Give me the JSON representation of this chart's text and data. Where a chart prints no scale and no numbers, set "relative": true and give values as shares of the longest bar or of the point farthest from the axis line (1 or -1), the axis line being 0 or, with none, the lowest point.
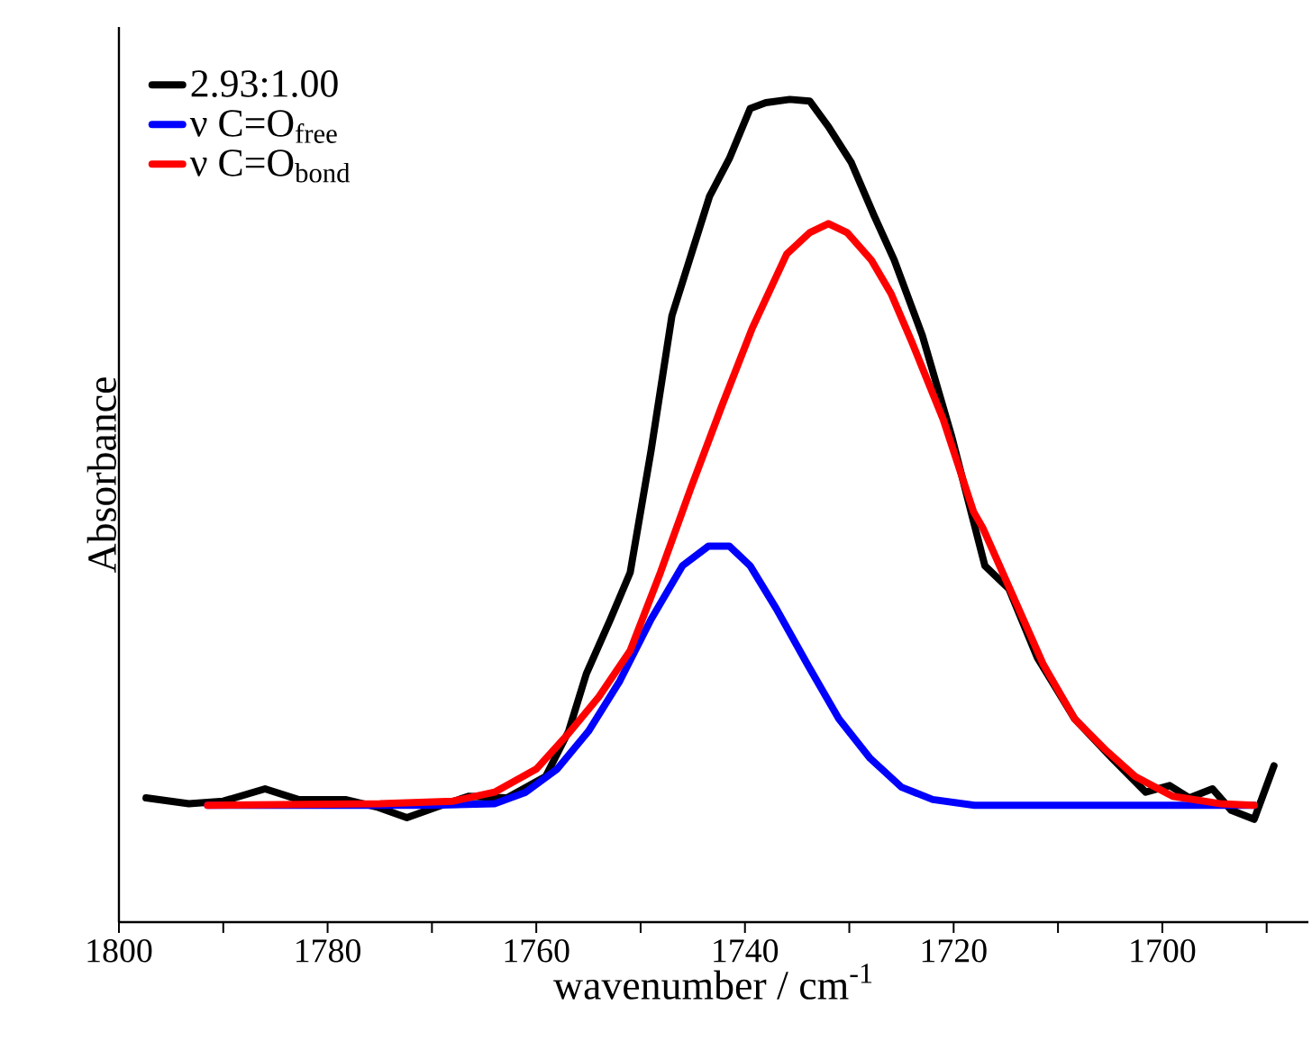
{
  "chart_data": {
    "type": "line",
    "relative": true,
    "xlabel": "wavenumber / cm$^{-1}$",
    "ylabel": "Absorbance",
    "xlim": [
      1800,
      1686
    ],
    "xticks": [
      1800,
      {
        "value": 1790,
        "label": null
      },
      1780,
      {
        "value": 1770,
        "label": null
      },
      1760,
      {
        "value": 1750,
        "label": null
      },
      1740,
      {
        "value": 1730,
        "label": null
      },
      1720,
      {
        "value": 1710,
        "label": null
      },
      1700,
      {
        "value": 1690,
        "label": null
      }
    ],
    "legend": "top left",
    "line_style": "solid",
    "series": [
      {
        "name": "2.93:1.00",
        "color": "#000000",
        "x": [
          1797.4,
          1793.3,
          1790,
          1786,
          1782.8,
          1778.3,
          1775.3,
          1772.4,
          1769.5,
          1766.5,
          1762.8,
          1759.1,
          1756.9,
          1755.2,
          1752.9,
          1751,
          1749,
          1747,
          1743.4,
          1741.5,
          1739.5,
          1738,
          1735.7,
          1733.8,
          1732,
          1729.8,
          1727.6,
          1725.7,
          1723,
          1720.2,
          1717,
          1714.7,
          1712,
          1708.4,
          1704.8,
          1701.6,
          1699.3,
          1697.4,
          1695.2,
          1693.4,
          1691.2,
          1689.3
        ],
        "values": [
          0.151,
          0.144,
          0.147,
          0.162,
          0.149,
          0.149,
          0.14,
          0.127,
          0.14,
          0.153,
          0.151,
          0.177,
          0.232,
          0.302,
          0.368,
          0.425,
          0.573,
          0.737,
          0.882,
          0.928,
          0.989,
          0.996,
          1.0,
          0.998,
          0.967,
          0.923,
          0.858,
          0.805,
          0.713,
          0.591,
          0.433,
          0.405,
          0.322,
          0.247,
          0.199,
          0.158,
          0.166,
          0.151,
          0.162,
          0.136,
          0.125,
          0.19
        ]
      },
      {
        "name": "ν C=O$_{free}$",
        "color": "#0000ff",
        "x": [
          1791.5,
          1770,
          1764,
          1761,
          1758,
          1755,
          1752,
          1749,
          1746,
          1743.5,
          1741.5,
          1739.5,
          1737,
          1734,
          1731,
          1728,
          1725,
          1722,
          1718,
          1691.2
        ],
        "values": [
          0.142,
          0.142,
          0.144,
          0.158,
          0.186,
          0.232,
          0.293,
          0.368,
          0.433,
          0.457,
          0.457,
          0.433,
          0.381,
          0.313,
          0.247,
          0.199,
          0.164,
          0.149,
          0.142,
          0.142
        ]
      },
      {
        "name": "ν C=O$_{bond}$",
        "color": "#ff0000",
        "x": [
          1791.5,
          1775,
          1768,
          1764,
          1760,
          1757,
          1754,
          1751,
          1748.1,
          1745.2,
          1742.2,
          1739.3,
          1736,
          1733.8,
          1732,
          1730.2,
          1727.9,
          1726,
          1724,
          1721,
          1718.1,
          1717.2,
          1714.3,
          1711.4,
          1708.4,
          1705.5,
          1702.6,
          1699,
          1694.5,
          1691.2
        ],
        "values": [
          0.142,
          0.144,
          0.147,
          0.158,
          0.186,
          0.228,
          0.274,
          0.33,
          0.425,
          0.527,
          0.628,
          0.722,
          0.812,
          0.838,
          0.849,
          0.838,
          0.805,
          0.764,
          0.705,
          0.611,
          0.499,
          0.479,
          0.396,
          0.313,
          0.247,
          0.21,
          0.177,
          0.153,
          0.144,
          0.142
        ]
      }
    ]
  }
}
